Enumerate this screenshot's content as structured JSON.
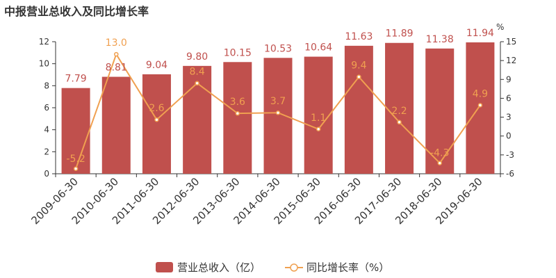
{
  "chart_data": {
    "type": "bar",
    "title": "中报营业总收入及同比增长率",
    "categories": [
      "2009-06-30",
      "2010-06-30",
      "2011-06-30",
      "2012-06-30",
      "2013-06-30",
      "2014-06-30",
      "2015-06-30",
      "2016-06-30",
      "2017-06-30",
      "2018-06-30",
      "2019-06-30"
    ],
    "series": [
      {
        "name": "营业总收入（亿）",
        "type": "bar",
        "axis": "left",
        "color": "#c0504d",
        "values": [
          7.79,
          8.81,
          9.04,
          9.8,
          10.15,
          10.53,
          10.64,
          11.63,
          11.89,
          11.38,
          11.94
        ],
        "labels": [
          "7.79",
          "8.81",
          "9.04",
          "9.80",
          "10.15",
          "10.53",
          "10.64",
          "11.63",
          "11.89",
          "11.38",
          "11.94"
        ]
      },
      {
        "name": "同比增长率（%）",
        "type": "line",
        "axis": "right",
        "color": "#f0a050",
        "values": [
          -5.2,
          13.0,
          2.6,
          8.4,
          3.6,
          3.7,
          1.1,
          9.4,
          2.2,
          -4.3,
          4.9
        ],
        "labels": [
          "-5.2",
          "13.0",
          "2.6",
          "8.4",
          "3.6",
          "3.7",
          "1.1",
          "9.4",
          "2.2",
          "-4.3",
          "4.9"
        ]
      }
    ],
    "y_left": {
      "ylim": [
        0,
        12
      ],
      "ticks": [
        "0",
        "2",
        "4",
        "6",
        "8",
        "10",
        "12"
      ]
    },
    "y_right": {
      "unit": "%",
      "ylim": [
        -6,
        15
      ],
      "ticks": [
        "-6",
        "-3",
        "0",
        "3",
        "6",
        "9",
        "12",
        "15"
      ]
    },
    "grid": false,
    "legend_position": "bottom-center"
  }
}
